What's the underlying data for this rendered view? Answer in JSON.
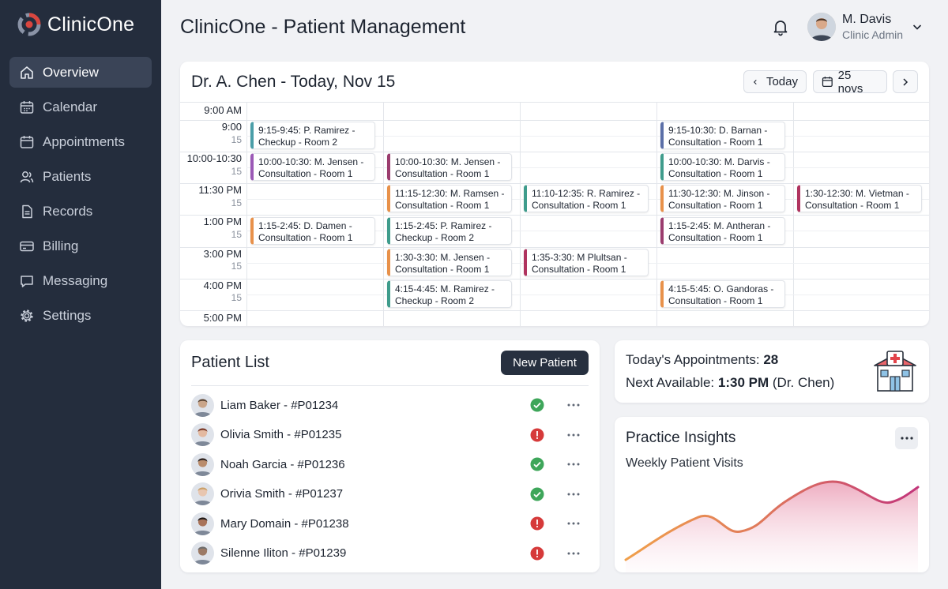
{
  "sidebar": {
    "brand": "ClinicOne",
    "items": [
      {
        "label": "Overview",
        "icon": "home-icon",
        "active": true
      },
      {
        "label": "Calendar",
        "icon": "calendar-icon"
      },
      {
        "label": "Appointments",
        "icon": "appointments-icon"
      },
      {
        "label": "Patients",
        "icon": "patients-icon"
      },
      {
        "label": "Records",
        "icon": "records-icon"
      },
      {
        "label": "Billing",
        "icon": "billing-icon"
      },
      {
        "label": "Messaging",
        "icon": "message-icon"
      },
      {
        "label": "Settings",
        "icon": "gear-icon"
      }
    ]
  },
  "header": {
    "title": "ClinicOne - Patient Management",
    "user": {
      "name": "M. Davis",
      "role": "Clinic Admin"
    }
  },
  "schedule": {
    "title": "Dr. A. Chen - Today, Nov 15",
    "today_label": "Today",
    "date_label": "25 novs",
    "time_labels": [
      "9:00 AM",
      "9:00",
      "15",
      "10:00-10:30",
      "15",
      "11:30 PM",
      "15",
      "1:00 PM",
      "15",
      "3:00 PM",
      "15",
      "4:00 PM",
      "15",
      "5:00 PM"
    ],
    "events": [
      {
        "line1": "9:15-9:45: P. Ramirez -",
        "line2": "Checkup - Room 2",
        "col": 0,
        "row": 0,
        "color": "#4a9ea8"
      },
      {
        "line1": "10:00-10:30: M. Jensen -",
        "line2": "Consultation - Room 1",
        "col": 0,
        "row": 1,
        "color": "#9b59b6"
      },
      {
        "line1": "1:15-2:45: D. Damen -",
        "line2": "Consultation - Room 1",
        "col": 0,
        "row": 3,
        "color": "#e8914a"
      },
      {
        "line1": "10:00-10:30: M. Jensen -",
        "line2": "Consultation - Room 1",
        "col": 1,
        "row": 1,
        "color": "#9b3c6e"
      },
      {
        "line1": "11:15-12:30: M. Ramsen -",
        "line2": "Consultation - Room 1",
        "col": 1,
        "row": 2,
        "color": "#e8914a"
      },
      {
        "line1": "1:15-2:45: P. Ramirez -",
        "line2": "Checkup - Room 2",
        "col": 1,
        "row": 3,
        "color": "#3f9c8c"
      },
      {
        "line1": "1:30-3:30: M. Jensen -",
        "line2": "Consultation - Room 1",
        "col": 1,
        "row": 4,
        "color": "#e8914a"
      },
      {
        "line1": "4:15-4:45: M. Ramirez -",
        "line2": "Checkup - Room 2",
        "col": 1,
        "row": 5,
        "color": "#3f9c8c"
      },
      {
        "line1": "11:10-12:35: R. Ramirez -",
        "line2": "Consultation - Room 1",
        "col": 2,
        "row": 2,
        "color": "#3f9c8c"
      },
      {
        "line1": "1:35-3:30: M Plultsan -",
        "line2": "Consultation - Room 1",
        "col": 2,
        "row": 4,
        "color": "#b0335f"
      },
      {
        "line1": "9:15-10:30: D. Barnan -",
        "line2": "Consultation - Room 1",
        "col": 3,
        "row": 0,
        "color": "#5b6fa8"
      },
      {
        "line1": "10:00-10:30: M. Darvis -",
        "line2": "Consultation - Room 1",
        "col": 3,
        "row": 1,
        "color": "#3f9c8c"
      },
      {
        "line1": "11:30-12:30: M. Jinson -",
        "line2": "Consultation - Room 1",
        "col": 3,
        "row": 2,
        "color": "#e8914a"
      },
      {
        "line1": "1:15-2:45: M. Antheran -",
        "line2": "Consultation - Room 1",
        "col": 3,
        "row": 3,
        "color": "#9b3c6e"
      },
      {
        "line1": "4:15-5:45: O. Gandoras -",
        "line2": "Consultation - Room 1",
        "col": 3,
        "row": 5,
        "color": "#e8914a"
      },
      {
        "line1": "1:30-12:30: M. Vietman -",
        "line2": "Consultation - Room 1",
        "col": 4,
        "row": 2,
        "color": "#b0335f"
      }
    ]
  },
  "patients": {
    "title": "Patient List",
    "new_label": "New Patient",
    "rows": [
      {
        "name": "Liam Baker - #P01234",
        "status": "ok"
      },
      {
        "name": "Olivia Smith - #P01235",
        "status": "alert"
      },
      {
        "name": "Noah Garcia - #P01236",
        "status": "ok"
      },
      {
        "name": "Orivia Smith - #P01237",
        "status": "ok"
      },
      {
        "name": "Mary Domain - #P01238",
        "status": "alert"
      },
      {
        "name": "Silenne Iliton - #P01239",
        "status": "alert"
      }
    ]
  },
  "summary": {
    "appointments_label": "Today's Appointments:",
    "appointments_value": "28",
    "next_label": "Next Available:",
    "next_value": "1:30 PM",
    "next_suffix": "(Dr. Chen)"
  },
  "insights": {
    "title": "Practice Insights",
    "subtitle": "Weekly Patient Visits"
  },
  "colors": {
    "sidebar": "#242d3d",
    "ok": "#3ea65a",
    "alert": "#d63a3a",
    "dark_button": "#27303f",
    "chart_start": "#f0a04b",
    "chart_end": "#c2357a"
  }
}
